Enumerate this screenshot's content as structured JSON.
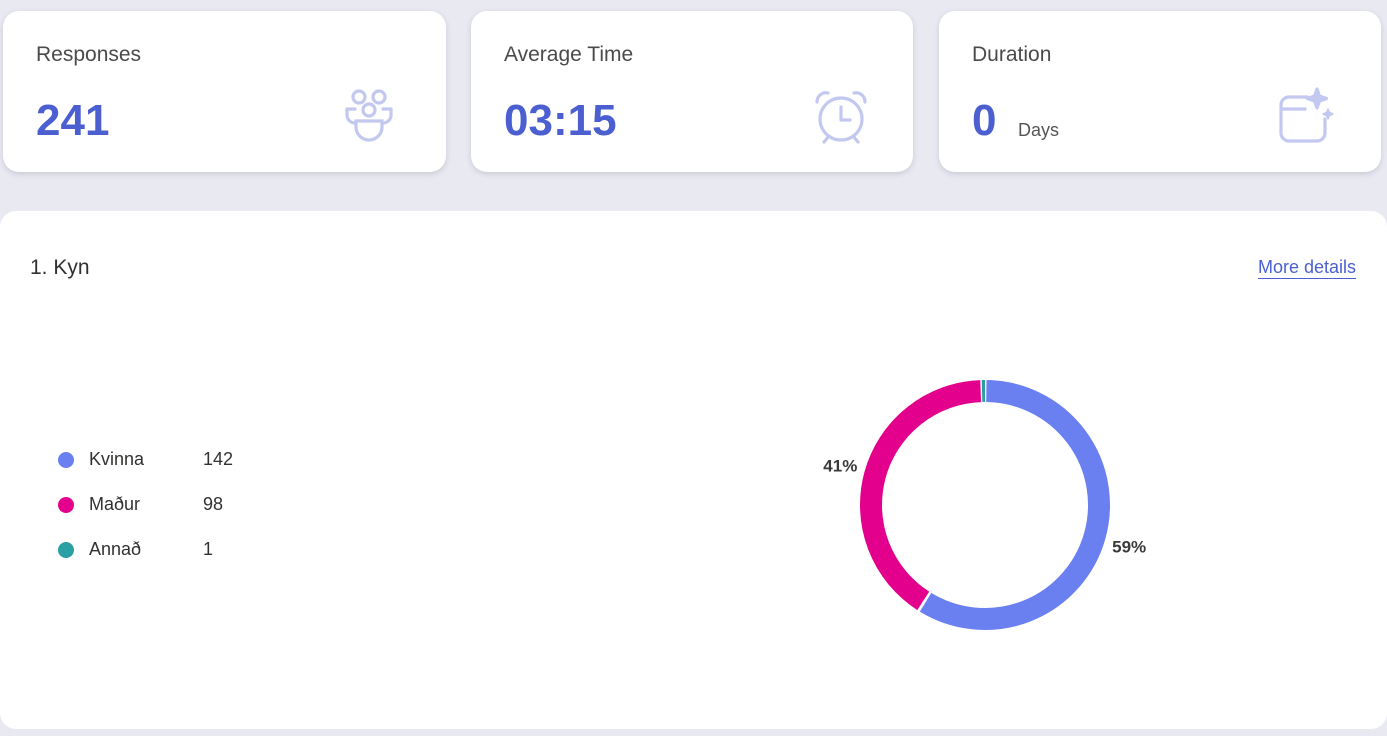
{
  "stats": [
    {
      "label": "Responses",
      "value": "241",
      "icon": "people-icon"
    },
    {
      "label": "Average Time",
      "value": "03:15",
      "icon": "alarm-clock-icon"
    },
    {
      "label": "Duration",
      "value": "0",
      "unit": "Days",
      "icon": "calendar-sparkle-icon"
    }
  ],
  "colors": {
    "accent": "#4b5fd1",
    "icon": "#c3c8f0",
    "kvinna": "#6a7ff0",
    "madur": "#e3008c",
    "annad": "#2aa0a4"
  },
  "question": {
    "title": "1. Kyn",
    "more_details": "More details"
  },
  "chart_data": {
    "type": "pie",
    "categories": [
      "Kvinna",
      "Maður",
      "Annað"
    ],
    "values": [
      142,
      98,
      1
    ],
    "percent_labels": [
      "59%",
      "41%",
      ""
    ],
    "colors": [
      "#6a7ff0",
      "#e3008c",
      "#2aa0a4"
    ]
  }
}
